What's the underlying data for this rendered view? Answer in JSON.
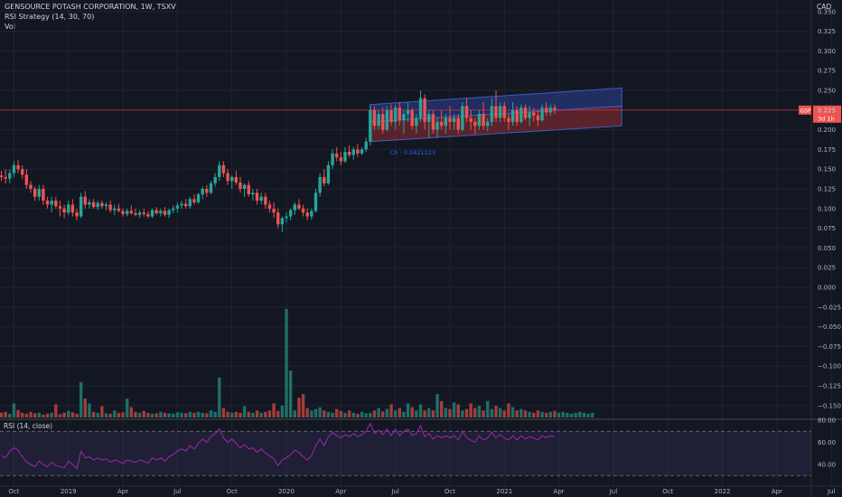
{
  "header": {
    "title": "GENSOURCE POTASH CORPORATION, 1W, TSXV",
    "indicator1": "RSI Strategy (14, 30, 70)",
    "indicator2": "Vol",
    "currency": "CAD",
    "rsi_label": "RSI (14, close)"
  },
  "price_tag": {
    "symbol": "GSP",
    "price": "0.225",
    "countdown": "3d 1h"
  },
  "annotation": "Ch · 0.0421223",
  "colors": {
    "background": "#131722",
    "up": "#26a69a",
    "down": "#ef5350",
    "up_volume": "#1f6f68",
    "down_volume": "#a33d3b",
    "rsi_line": "#9c27b0",
    "channel_upper": "#2a3e8c",
    "channel_lower": "#8a2a32",
    "price_line": "#f23645"
  },
  "chart_data": {
    "type": "candlestick",
    "title": "GENSOURCE POTASH CORPORATION, 1W, TSXV",
    "y_ticks": [
      "0.350",
      "0.325",
      "0.300",
      "0.275",
      "0.250",
      "0.225",
      "0.200",
      "0.175",
      "0.150",
      "0.125",
      "0.100",
      "0.075",
      "0.050",
      "0.025",
      "0.000",
      "−0.025",
      "−0.050",
      "−0.075",
      "−0.100",
      "−0.125",
      "−0.150"
    ],
    "ylim": [
      -0.16,
      0.36
    ],
    "x_ticks": [
      "Oct",
      "2019",
      "Apr",
      "Jul",
      "Oct",
      "2020",
      "Apr",
      "Jul",
      "Oct",
      "2021",
      "Apr",
      "Jul",
      "Oct",
      "2022",
      "Apr",
      "Jul",
      "Oct"
    ],
    "rsi_ticks": [
      "80.00",
      "60.00",
      "40.00"
    ],
    "rsi_levels": [
      70,
      30
    ],
    "last_price": 0.225,
    "candles": [
      [
        0.142,
        0.148,
        0.135,
        0.14
      ],
      [
        0.14,
        0.15,
        0.132,
        0.138
      ],
      [
        0.138,
        0.15,
        0.132,
        0.145
      ],
      [
        0.145,
        0.16,
        0.14,
        0.155
      ],
      [
        0.155,
        0.162,
        0.145,
        0.15
      ],
      [
        0.15,
        0.155,
        0.138,
        0.143
      ],
      [
        0.143,
        0.15,
        0.125,
        0.13
      ],
      [
        0.13,
        0.135,
        0.12,
        0.125
      ],
      [
        0.125,
        0.128,
        0.11,
        0.115
      ],
      [
        0.115,
        0.13,
        0.11,
        0.125
      ],
      [
        0.125,
        0.13,
        0.105,
        0.11
      ],
      [
        0.11,
        0.115,
        0.1,
        0.105
      ],
      [
        0.105,
        0.115,
        0.095,
        0.11
      ],
      [
        0.11,
        0.115,
        0.1,
        0.103
      ],
      [
        0.103,
        0.11,
        0.09,
        0.1
      ],
      [
        0.1,
        0.105,
        0.088,
        0.095
      ],
      [
        0.095,
        0.11,
        0.092,
        0.105
      ],
      [
        0.105,
        0.112,
        0.09,
        0.095
      ],
      [
        0.095,
        0.1,
        0.085,
        0.09
      ],
      [
        0.09,
        0.12,
        0.088,
        0.115
      ],
      [
        0.115,
        0.122,
        0.1,
        0.105
      ],
      [
        0.105,
        0.112,
        0.1,
        0.108
      ],
      [
        0.108,
        0.112,
        0.1,
        0.102
      ],
      [
        0.102,
        0.11,
        0.098,
        0.107
      ],
      [
        0.107,
        0.11,
        0.1,
        0.103
      ],
      [
        0.103,
        0.108,
        0.098,
        0.105
      ],
      [
        0.105,
        0.11,
        0.095,
        0.098
      ],
      [
        0.098,
        0.105,
        0.092,
        0.1
      ],
      [
        0.1,
        0.106,
        0.095,
        0.097
      ],
      [
        0.097,
        0.1,
        0.09,
        0.093
      ],
      [
        0.093,
        0.1,
        0.09,
        0.097
      ],
      [
        0.097,
        0.104,
        0.092,
        0.094
      ],
      [
        0.094,
        0.1,
        0.09,
        0.092
      ],
      [
        0.092,
        0.098,
        0.088,
        0.095
      ],
      [
        0.095,
        0.1,
        0.09,
        0.093
      ],
      [
        0.093,
        0.097,
        0.088,
        0.09
      ],
      [
        0.09,
        0.1,
        0.088,
        0.098
      ],
      [
        0.098,
        0.102,
        0.092,
        0.094
      ],
      [
        0.094,
        0.1,
        0.09,
        0.097
      ],
      [
        0.097,
        0.102,
        0.09,
        0.092
      ],
      [
        0.092,
        0.1,
        0.088,
        0.098
      ],
      [
        0.098,
        0.104,
        0.094,
        0.1
      ],
      [
        0.1,
        0.108,
        0.095,
        0.104
      ],
      [
        0.104,
        0.11,
        0.1,
        0.106
      ],
      [
        0.106,
        0.112,
        0.1,
        0.103
      ],
      [
        0.103,
        0.115,
        0.1,
        0.112
      ],
      [
        0.112,
        0.118,
        0.105,
        0.108
      ],
      [
        0.108,
        0.12,
        0.106,
        0.118
      ],
      [
        0.118,
        0.128,
        0.112,
        0.125
      ],
      [
        0.125,
        0.13,
        0.115,
        0.12
      ],
      [
        0.12,
        0.135,
        0.118,
        0.132
      ],
      [
        0.132,
        0.145,
        0.128,
        0.14
      ],
      [
        0.14,
        0.16,
        0.135,
        0.155
      ],
      [
        0.155,
        0.16,
        0.14,
        0.145
      ],
      [
        0.145,
        0.15,
        0.13,
        0.135
      ],
      [
        0.135,
        0.142,
        0.125,
        0.14
      ],
      [
        0.14,
        0.148,
        0.13,
        0.133
      ],
      [
        0.133,
        0.14,
        0.12,
        0.125
      ],
      [
        0.125,
        0.132,
        0.115,
        0.13
      ],
      [
        0.13,
        0.135,
        0.115,
        0.118
      ],
      [
        0.118,
        0.125,
        0.11,
        0.12
      ],
      [
        0.12,
        0.125,
        0.105,
        0.11
      ],
      [
        0.11,
        0.12,
        0.105,
        0.115
      ],
      [
        0.115,
        0.12,
        0.1,
        0.105
      ],
      [
        0.105,
        0.11,
        0.095,
        0.1
      ],
      [
        0.1,
        0.108,
        0.088,
        0.095
      ],
      [
        0.095,
        0.1,
        0.075,
        0.08
      ],
      [
        0.08,
        0.09,
        0.07,
        0.088
      ],
      [
        0.088,
        0.095,
        0.082,
        0.09
      ],
      [
        0.09,
        0.1,
        0.085,
        0.098
      ],
      [
        0.098,
        0.108,
        0.092,
        0.105
      ],
      [
        0.105,
        0.112,
        0.098,
        0.1
      ],
      [
        0.1,
        0.105,
        0.09,
        0.095
      ],
      [
        0.095,
        0.1,
        0.085,
        0.09
      ],
      [
        0.09,
        0.1,
        0.086,
        0.097
      ],
      [
        0.097,
        0.125,
        0.095,
        0.12
      ],
      [
        0.12,
        0.145,
        0.115,
        0.14
      ],
      [
        0.14,
        0.15,
        0.128,
        0.132
      ],
      [
        0.132,
        0.16,
        0.13,
        0.155
      ],
      [
        0.155,
        0.175,
        0.15,
        0.17
      ],
      [
        0.17,
        0.178,
        0.16,
        0.165
      ],
      [
        0.165,
        0.172,
        0.155,
        0.16
      ],
      [
        0.16,
        0.178,
        0.158,
        0.172
      ],
      [
        0.172,
        0.18,
        0.165,
        0.168
      ],
      [
        0.168,
        0.178,
        0.162,
        0.175
      ],
      [
        0.175,
        0.182,
        0.165,
        0.17
      ],
      [
        0.17,
        0.178,
        0.168,
        0.175
      ],
      [
        0.175,
        0.19,
        0.172,
        0.185
      ],
      [
        0.185,
        0.232,
        0.18,
        0.225
      ],
      [
        0.225,
        0.23,
        0.2,
        0.205
      ],
      [
        0.205,
        0.225,
        0.2,
        0.22
      ],
      [
        0.22,
        0.228,
        0.195,
        0.2
      ],
      [
        0.2,
        0.23,
        0.198,
        0.225
      ],
      [
        0.225,
        0.232,
        0.205,
        0.21
      ],
      [
        0.21,
        0.232,
        0.2,
        0.228
      ],
      [
        0.228,
        0.235,
        0.205,
        0.212
      ],
      [
        0.212,
        0.225,
        0.195,
        0.22
      ],
      [
        0.22,
        0.235,
        0.21,
        0.225
      ],
      [
        0.225,
        0.228,
        0.2,
        0.205
      ],
      [
        0.205,
        0.22,
        0.195,
        0.215
      ],
      [
        0.215,
        0.25,
        0.21,
        0.24
      ],
      [
        0.24,
        0.245,
        0.2,
        0.21
      ],
      [
        0.21,
        0.225,
        0.19,
        0.22
      ],
      [
        0.22,
        0.225,
        0.195,
        0.2
      ],
      [
        0.2,
        0.215,
        0.19,
        0.21
      ],
      [
        0.21,
        0.225,
        0.2,
        0.205
      ],
      [
        0.205,
        0.22,
        0.195,
        0.215
      ],
      [
        0.215,
        0.23,
        0.2,
        0.21
      ],
      [
        0.21,
        0.22,
        0.2,
        0.215
      ],
      [
        0.215,
        0.22,
        0.195,
        0.2
      ],
      [
        0.2,
        0.235,
        0.198,
        0.23
      ],
      [
        0.23,
        0.24,
        0.21,
        0.215
      ],
      [
        0.215,
        0.225,
        0.2,
        0.21
      ],
      [
        0.21,
        0.215,
        0.195,
        0.205
      ],
      [
        0.205,
        0.225,
        0.2,
        0.22
      ],
      [
        0.22,
        0.235,
        0.2,
        0.205
      ],
      [
        0.205,
        0.215,
        0.198,
        0.21
      ],
      [
        0.21,
        0.24,
        0.205,
        0.23
      ],
      [
        0.23,
        0.25,
        0.21,
        0.215
      ],
      [
        0.215,
        0.235,
        0.21,
        0.23
      ],
      [
        0.23,
        0.235,
        0.21,
        0.215
      ],
      [
        0.215,
        0.22,
        0.2,
        0.21
      ],
      [
        0.21,
        0.235,
        0.205,
        0.225
      ],
      [
        0.225,
        0.23,
        0.205,
        0.21
      ],
      [
        0.21,
        0.232,
        0.208,
        0.228
      ],
      [
        0.228,
        0.232,
        0.212,
        0.215
      ],
      [
        0.215,
        0.23,
        0.205,
        0.222
      ],
      [
        0.222,
        0.228,
        0.21,
        0.218
      ],
      [
        0.218,
        0.225,
        0.205,
        0.212
      ],
      [
        0.212,
        0.232,
        0.21,
        0.228
      ],
      [
        0.228,
        0.235,
        0.218,
        0.222
      ],
      [
        0.222,
        0.232,
        0.218,
        0.228
      ],
      [
        0.228,
        0.232,
        0.22,
        0.225
      ]
    ],
    "volume": [
      0.1,
      0.12,
      0.08,
      0.3,
      0.16,
      0.1,
      0.08,
      0.12,
      0.09,
      0.1,
      0.06,
      0.08,
      0.1,
      0.28,
      0.07,
      0.1,
      0.14,
      0.11,
      0.08,
      0.75,
      0.4,
      0.3,
      0.12,
      0.1,
      0.24,
      0.09,
      0.08,
      0.15,
      0.1,
      0.11,
      0.4,
      0.22,
      0.12,
      0.1,
      0.14,
      0.1,
      0.08,
      0.09,
      0.12,
      0.1,
      0.09,
      0.08,
      0.11,
      0.1,
      0.09,
      0.12,
      0.1,
      0.12,
      0.1,
      0.09,
      0.15,
      0.12,
      0.85,
      0.2,
      0.12,
      0.1,
      0.12,
      0.1,
      0.24,
      0.12,
      0.1,
      0.15,
      0.1,
      0.12,
      0.15,
      0.3,
      0.14,
      0.25,
      3.5,
      1.0,
      0.15,
      0.42,
      0.5,
      0.2,
      0.15,
      0.18,
      0.22,
      0.15,
      0.12,
      0.1,
      0.18,
      0.14,
      0.1,
      0.15,
      0.1,
      0.08,
      0.12,
      0.09,
      0.1,
      0.15,
      0.2,
      0.13,
      0.18,
      0.28,
      0.15,
      0.2,
      0.12,
      0.3,
      0.22,
      0.15,
      0.28,
      0.15,
      0.2,
      0.15,
      0.5,
      0.35,
      0.2,
      0.18,
      0.32,
      0.28,
      0.15,
      0.18,
      0.3,
      0.2,
      0.25,
      0.15,
      0.35,
      0.18,
      0.25,
      0.2,
      0.15,
      0.3,
      0.22,
      0.15,
      0.18,
      0.15,
      0.12,
      0.1,
      0.15,
      0.12,
      0.1,
      0.12,
      0.14,
      0.1,
      0.12,
      0.1,
      0.08,
      0.1,
      0.12,
      0.1,
      0.08,
      0.1
    ],
    "rsi": [
      48,
      46,
      52,
      55,
      53,
      47,
      42,
      40,
      38,
      43,
      40,
      38,
      42,
      39,
      38,
      37,
      43,
      40,
      36,
      52,
      46,
      47,
      44,
      46,
      44,
      45,
      42,
      44,
      43,
      41,
      44,
      43,
      42,
      44,
      43,
      41,
      46,
      44,
      46,
      43,
      47,
      49,
      52,
      54,
      52,
      57,
      54,
      59,
      63,
      60,
      65,
      68,
      72,
      64,
      60,
      63,
      59,
      55,
      58,
      54,
      55,
      51,
      54,
      50,
      48,
      45,
      39,
      44,
      46,
      49,
      53,
      51,
      47,
      44,
      48,
      57,
      63,
      57,
      65,
      69,
      66,
      64,
      67,
      65,
      68,
      65,
      67,
      70,
      77,
      68,
      71,
      67,
      72,
      66,
      72,
      66,
      70,
      72,
      66,
      68,
      75,
      65,
      68,
      63,
      66,
      64,
      66,
      64,
      66,
      62,
      70,
      64,
      62,
      60,
      66,
      62,
      64,
      69,
      64,
      67,
      64,
      62,
      66,
      62,
      66,
      63,
      65,
      64,
      62,
      66,
      64,
      66,
      65
    ],
    "x_tick_bars": [
      3,
      16,
      29,
      42,
      55,
      68,
      81,
      94,
      107,
      120,
      133,
      146,
      159,
      172,
      185,
      198,
      211
    ],
    "channel_bars": [
      88,
      148
    ],
    "channel_upper": [
      [
        0.232,
        0.253
      ],
      [
        0.21,
        0.23
      ]
    ],
    "channel_lower": [
      [
        0.21,
        0.23
      ],
      [
        0.185,
        0.205
      ]
    ]
  }
}
